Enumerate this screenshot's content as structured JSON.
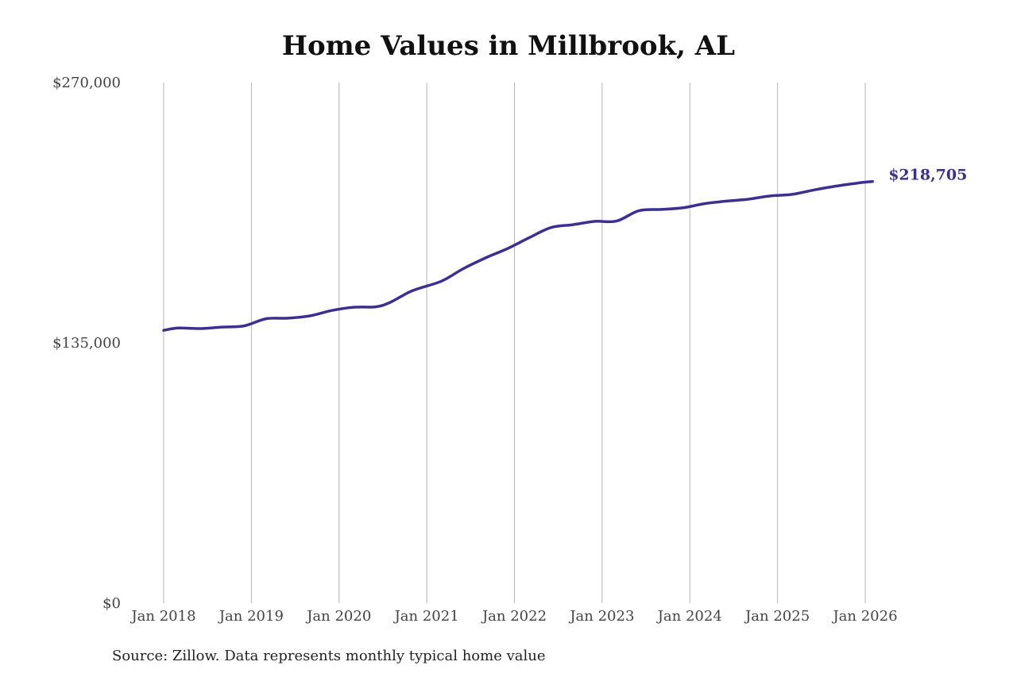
{
  "chart_data": {
    "type": "line",
    "title": "Home Values in Millbrook, AL",
    "source": "Source: Zillow. Data represents monthly typical home value",
    "ylim": [
      0,
      270000
    ],
    "y_ticks": [
      "$0",
      "$135,000",
      "$270,000"
    ],
    "x_ticks": [
      "Jan 2018",
      "Jan 2019",
      "Jan 2020",
      "Jan 2021",
      "Jan 2022",
      "Jan 2023",
      "Jan 2024",
      "Jan 2025",
      "Jan 2026"
    ],
    "grid": "vertical",
    "line_color": "#3b2f8f",
    "end_label": "$218,705",
    "series": [
      {
        "values": [
          {
            "x": "2018-01",
            "y": 141500
          },
          {
            "x": "2018-03",
            "y": 142700
          },
          {
            "x": "2018-06",
            "y": 142400
          },
          {
            "x": "2018-09",
            "y": 143200
          },
          {
            "x": "2018-12",
            "y": 143800
          },
          {
            "x": "2019-03",
            "y": 147500
          },
          {
            "x": "2019-06",
            "y": 147800
          },
          {
            "x": "2019-09",
            "y": 149000
          },
          {
            "x": "2019-12",
            "y": 151800
          },
          {
            "x": "2020-03",
            "y": 153500
          },
          {
            "x": "2020-06",
            "y": 153700
          },
          {
            "x": "2020-08",
            "y": 156000
          },
          {
            "x": "2020-11",
            "y": 162000
          },
          {
            "x": "2021-03",
            "y": 167000
          },
          {
            "x": "2021-06",
            "y": 173500
          },
          {
            "x": "2021-09",
            "y": 179000
          },
          {
            "x": "2021-12",
            "y": 183800
          },
          {
            "x": "2022-03",
            "y": 189500
          },
          {
            "x": "2022-06",
            "y": 194800
          },
          {
            "x": "2022-09",
            "y": 196300
          },
          {
            "x": "2022-12",
            "y": 198000
          },
          {
            "x": "2023-03",
            "y": 198200
          },
          {
            "x": "2023-06",
            "y": 203500
          },
          {
            "x": "2023-09",
            "y": 204200
          },
          {
            "x": "2023-12",
            "y": 205000
          },
          {
            "x": "2024-03",
            "y": 207200
          },
          {
            "x": "2024-06",
            "y": 208500
          },
          {
            "x": "2024-09",
            "y": 209500
          },
          {
            "x": "2024-12",
            "y": 211200
          },
          {
            "x": "2025-03",
            "y": 212000
          },
          {
            "x": "2025-06",
            "y": 214300
          },
          {
            "x": "2025-09",
            "y": 216300
          },
          {
            "x": "2025-12",
            "y": 217900
          },
          {
            "x": "2026-02",
            "y": 218705
          }
        ]
      }
    ]
  }
}
